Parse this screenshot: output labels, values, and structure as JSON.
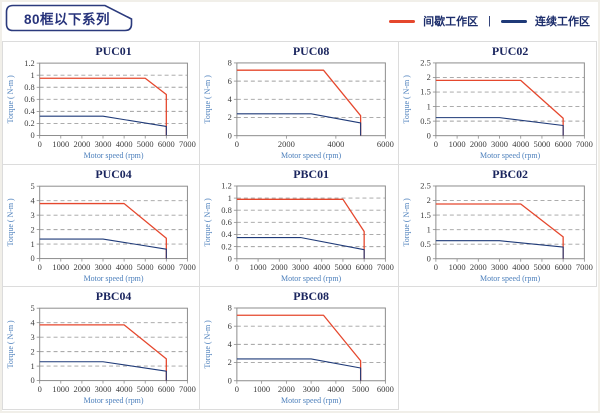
{
  "header": {
    "title": "80框以下系列",
    "legend": {
      "items": [
        {
          "name": "intermittent-zone",
          "label": "间歇工作区",
          "color": "#e5472d"
        },
        {
          "name": "continuous-zone",
          "label": "连续工作区",
          "color": "#1f3a78"
        }
      ],
      "separator": "|"
    }
  },
  "style": {
    "red": "#e5472d",
    "navy": "#1f3a78",
    "plot_border": "#8c8c8c",
    "grid_dash": "#a0a0a0",
    "cell_border": "#dcdcdc",
    "title_color": "#1a255e",
    "axis_label_color": "#4a7ebb"
  },
  "chart_data": [
    {
      "type": "line",
      "title": "PUC01",
      "xlabel": "Motor speed (rpm)",
      "ylabel": "Torque ( N-m )",
      "xlim": [
        0,
        7000
      ],
      "xticks": [
        0,
        1000,
        2000,
        3000,
        4000,
        5000,
        6000,
        7000
      ],
      "ylim": [
        0,
        1.2
      ],
      "yticks": [
        0,
        0.2,
        0.4,
        0.6,
        0.8,
        1,
        1.2
      ],
      "series": [
        {
          "name": "间歇工作区",
          "color": "#e5472d",
          "points": [
            [
              0,
              0.95
            ],
            [
              5000,
              0.95
            ],
            [
              6000,
              0.68
            ],
            [
              6000,
              0
            ]
          ]
        },
        {
          "name": "连续工作区",
          "color": "#1f3a78",
          "points": [
            [
              0,
              0.32
            ],
            [
              3000,
              0.32
            ],
            [
              6000,
              0.15
            ],
            [
              6000,
              0
            ]
          ]
        }
      ]
    },
    {
      "type": "line",
      "title": "PUC08",
      "xlabel": "Motor speed (rpm)",
      "ylabel": "Torque ( N-m )",
      "xlim": [
        0,
        6000
      ],
      "xticks": [
        0,
        2000,
        4000,
        6000
      ],
      "ylim": [
        0,
        8
      ],
      "yticks": [
        0,
        2,
        4,
        6,
        8
      ],
      "series": [
        {
          "name": "间歇工作区",
          "color": "#e5472d",
          "points": [
            [
              0,
              7.2
            ],
            [
              3500,
              7.2
            ],
            [
              5000,
              2.2
            ],
            [
              5000,
              0
            ]
          ]
        },
        {
          "name": "连续工作区",
          "color": "#1f3a78",
          "points": [
            [
              0,
              2.4
            ],
            [
              3000,
              2.4
            ],
            [
              5000,
              1.4
            ],
            [
              5000,
              0
            ]
          ]
        }
      ]
    },
    {
      "type": "line",
      "title": "PUC02",
      "xlabel": "Motor speed (rpm)",
      "ylabel": "Torque ( N-m )",
      "xlim": [
        0,
        7000
      ],
      "xticks": [
        0,
        1000,
        2000,
        3000,
        4000,
        5000,
        6000,
        7000
      ],
      "ylim": [
        0,
        2.5
      ],
      "yticks": [
        0,
        0.5,
        1,
        1.5,
        2,
        2.5
      ],
      "series": [
        {
          "name": "间歇工作区",
          "color": "#e5472d",
          "points": [
            [
              0,
              1.9
            ],
            [
              4000,
              1.9
            ],
            [
              6000,
              0.6
            ],
            [
              6000,
              0
            ]
          ]
        },
        {
          "name": "连续工作区",
          "color": "#1f3a78",
          "points": [
            [
              0,
              0.62
            ],
            [
              3000,
              0.62
            ],
            [
              6000,
              0.35
            ],
            [
              6000,
              0
            ]
          ]
        }
      ]
    },
    {
      "type": "line",
      "title": "PUC04",
      "xlabel": "Motor speed (rpm)",
      "ylabel": "Torque ( N-m )",
      "xlim": [
        0,
        7000
      ],
      "xticks": [
        0,
        1000,
        2000,
        3000,
        4000,
        5000,
        6000,
        7000
      ],
      "ylim": [
        0,
        5
      ],
      "yticks": [
        0,
        1,
        2,
        3,
        4,
        5
      ],
      "series": [
        {
          "name": "间歇工作区",
          "color": "#e5472d",
          "points": [
            [
              0,
              3.8
            ],
            [
              4000,
              3.8
            ],
            [
              6000,
              1.4
            ],
            [
              6000,
              0
            ]
          ]
        },
        {
          "name": "连续工作区",
          "color": "#1f3a78",
          "points": [
            [
              0,
              1.35
            ],
            [
              3000,
              1.35
            ],
            [
              6000,
              0.65
            ],
            [
              6000,
              0
            ]
          ]
        }
      ]
    },
    {
      "type": "line",
      "title": "PBC01",
      "xlabel": "Motor speed (rpm)",
      "ylabel": "Torque ( N-m )",
      "xlim": [
        0,
        7000
      ],
      "xticks": [
        0,
        1000,
        2000,
        3000,
        4000,
        5000,
        6000,
        7000
      ],
      "ylim": [
        0,
        1.2
      ],
      "yticks": [
        0,
        0.2,
        0.4,
        0.6,
        0.8,
        1,
        1.2
      ],
      "series": [
        {
          "name": "间歇工作区",
          "color": "#e5472d",
          "points": [
            [
              0,
              0.98
            ],
            [
              5000,
              0.98
            ],
            [
              6000,
              0.45
            ],
            [
              6000,
              0
            ]
          ]
        },
        {
          "name": "连续工作区",
          "color": "#1f3a78",
          "points": [
            [
              0,
              0.35
            ],
            [
              3000,
              0.35
            ],
            [
              6000,
              0.15
            ],
            [
              6000,
              0
            ]
          ]
        }
      ]
    },
    {
      "type": "line",
      "title": "PBC02",
      "xlabel": "Motor speed (rpm)",
      "ylabel": "Torque ( N-m )",
      "xlim": [
        0,
        7000
      ],
      "xticks": [
        0,
        1000,
        2000,
        3000,
        4000,
        5000,
        6000,
        7000
      ],
      "ylim": [
        0,
        2.5
      ],
      "yticks": [
        0,
        0.5,
        1,
        1.5,
        2,
        2.5
      ],
      "series": [
        {
          "name": "间歇工作区",
          "color": "#e5472d",
          "points": [
            [
              0,
              1.88
            ],
            [
              4000,
              1.88
            ],
            [
              6000,
              0.75
            ],
            [
              6000,
              0
            ]
          ]
        },
        {
          "name": "连续工作区",
          "color": "#1f3a78",
          "points": [
            [
              0,
              0.62
            ],
            [
              3000,
              0.62
            ],
            [
              6000,
              0.4
            ],
            [
              6000,
              0
            ]
          ]
        }
      ]
    },
    {
      "type": "line",
      "title": "PBC04",
      "xlabel": "Motor speed (rpm)",
      "ylabel": "Torque ( N-m )",
      "xlim": [
        0,
        7000
      ],
      "xticks": [
        0,
        1000,
        2000,
        3000,
        4000,
        5000,
        6000,
        7000
      ],
      "ylim": [
        0,
        5
      ],
      "yticks": [
        0,
        1,
        2,
        3,
        4,
        5
      ],
      "series": [
        {
          "name": "间歇工作区",
          "color": "#e5472d",
          "points": [
            [
              0,
              3.85
            ],
            [
              4000,
              3.85
            ],
            [
              6000,
              1.5
            ],
            [
              6000,
              0
            ]
          ]
        },
        {
          "name": "连续工作区",
          "color": "#1f3a78",
          "points": [
            [
              0,
              1.3
            ],
            [
              3000,
              1.3
            ],
            [
              6000,
              0.65
            ],
            [
              6000,
              0
            ]
          ]
        }
      ]
    },
    {
      "type": "line",
      "title": "PBC08",
      "xlabel": "Motor speed (rpm)",
      "ylabel": "Torque ( N-m )",
      "xlim": [
        0,
        6000
      ],
      "xticks": [
        0,
        1000,
        2000,
        3000,
        4000,
        5000,
        6000
      ],
      "ylim": [
        0,
        8
      ],
      "yticks": [
        0,
        2,
        4,
        6,
        8
      ],
      "series": [
        {
          "name": "间歇工作区",
          "color": "#e5472d",
          "points": [
            [
              0,
              7.2
            ],
            [
              3500,
              7.2
            ],
            [
              5000,
              2.2
            ],
            [
              5000,
              0
            ]
          ]
        },
        {
          "name": "连续工作区",
          "color": "#1f3a78",
          "points": [
            [
              0,
              2.4
            ],
            [
              3000,
              2.4
            ],
            [
              5000,
              1.4
            ],
            [
              5000,
              0
            ]
          ]
        }
      ]
    }
  ]
}
